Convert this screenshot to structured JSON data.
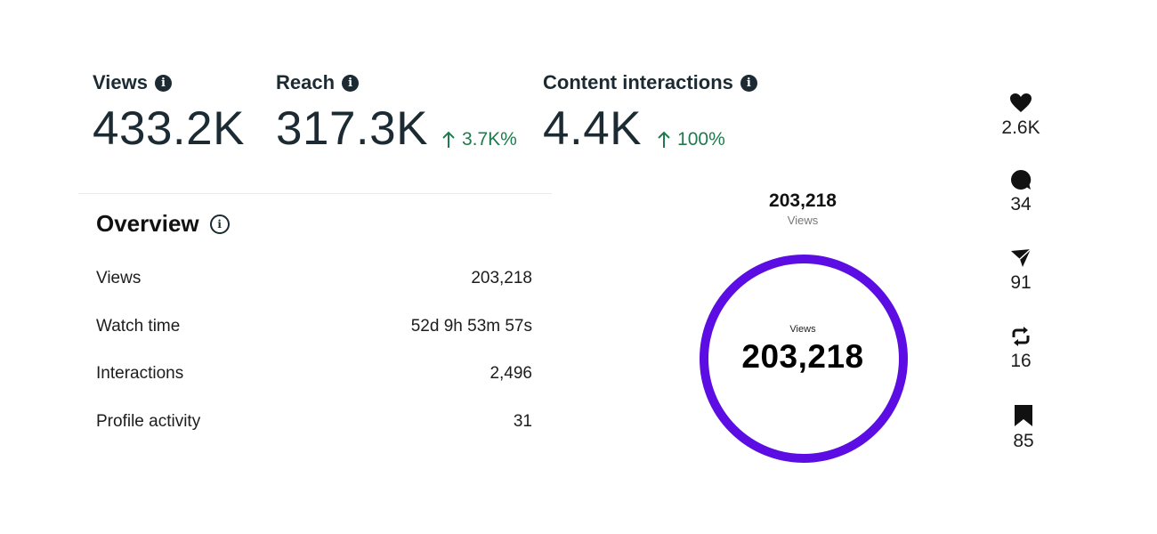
{
  "metrics": [
    {
      "label": "Views",
      "value": "433.2K",
      "change": ""
    },
    {
      "label": "Reach",
      "value": "317.3K",
      "change": "3.7K%"
    },
    {
      "label": "Content interactions",
      "value": "4.4K",
      "change": "100%"
    }
  ],
  "overview": {
    "title": "Overview",
    "rows": [
      {
        "label": "Views",
        "value": "203,218"
      },
      {
        "label": "Watch time",
        "value": "52d 9h 53m 57s"
      },
      {
        "label": "Interactions",
        "value": "2,496"
      },
      {
        "label": "Profile activity",
        "value": "31"
      }
    ]
  },
  "donut": {
    "top_value": "203,218",
    "top_label": "Views",
    "center_label": "Views",
    "center_value": "203,218",
    "ring_color": "#5b0de3"
  },
  "stats": [
    {
      "icon": "heart-icon",
      "value": "2.6K"
    },
    {
      "icon": "comment-icon",
      "value": "34"
    },
    {
      "icon": "send-icon",
      "value": "91"
    },
    {
      "icon": "repost-icon",
      "value": "16"
    },
    {
      "icon": "bookmark-icon",
      "value": "85"
    }
  ],
  "colors": {
    "positive": "#1f7a4d",
    "text": "#1c2b33",
    "ring": "#5b0de3"
  }
}
